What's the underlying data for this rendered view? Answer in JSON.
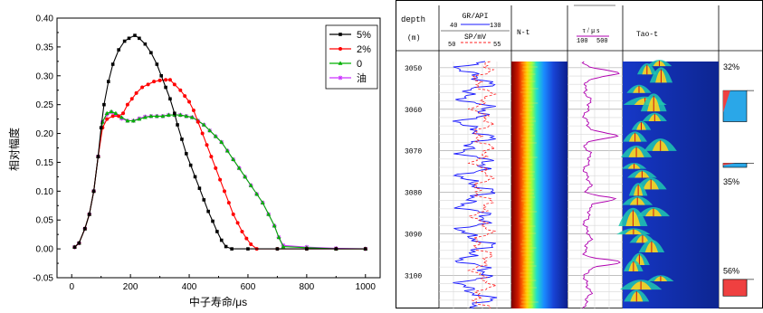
{
  "chart_data": [
    {
      "type": "line",
      "xlabel": "中子寿命/μs",
      "ylabel": "相对幅度",
      "xlim": [
        -50,
        1050
      ],
      "ylim": [
        -0.05,
        0.4
      ],
      "xticks": [
        "0",
        "200",
        "400",
        "600",
        "800",
        "1000"
      ],
      "yticks": [
        "-0.05",
        "0.00",
        "0.05",
        "0.10",
        "0.15",
        "0.20",
        "0.25",
        "0.30",
        "0.35",
        "0.40"
      ],
      "legend_position": "top-right",
      "series": [
        {
          "name": "5%",
          "color": "#000000",
          "marker": "square",
          "points": [
            [
              10,
              0.003
            ],
            [
              25,
              0.01
            ],
            [
              45,
              0.035
            ],
            [
              60,
              0.06
            ],
            [
              75,
              0.1
            ],
            [
              90,
              0.16
            ],
            [
              100,
              0.21
            ],
            [
              110,
              0.25
            ],
            [
              125,
              0.29
            ],
            [
              140,
              0.32
            ],
            [
              160,
              0.345
            ],
            [
              180,
              0.36
            ],
            [
              195,
              0.365
            ],
            [
              215,
              0.37
            ],
            [
              230,
              0.365
            ],
            [
              250,
              0.355
            ],
            [
              270,
              0.34
            ],
            [
              290,
              0.32
            ],
            [
              305,
              0.3
            ],
            [
              320,
              0.28
            ],
            [
              335,
              0.26
            ],
            [
              350,
              0.235
            ],
            [
              360,
              0.215
            ],
            [
              375,
              0.19
            ],
            [
              390,
              0.165
            ],
            [
              405,
              0.145
            ],
            [
              420,
              0.125
            ],
            [
              435,
              0.105
            ],
            [
              450,
              0.085
            ],
            [
              465,
              0.065
            ],
            [
              480,
              0.048
            ],
            [
              495,
              0.03
            ],
            [
              510,
              0.015
            ],
            [
              525,
              0.004
            ],
            [
              545,
              0.0
            ],
            [
              600,
              0.0
            ],
            [
              700,
              0.0
            ],
            [
              800,
              0.0
            ],
            [
              900,
              0.0
            ],
            [
              1000,
              0.0
            ]
          ]
        },
        {
          "name": "2%",
          "color": "#ff0000",
          "marker": "circle",
          "points": [
            [
              10,
              0.003
            ],
            [
              25,
              0.01
            ],
            [
              45,
              0.035
            ],
            [
              60,
              0.06
            ],
            [
              75,
              0.1
            ],
            [
              90,
              0.16
            ],
            [
              105,
              0.21
            ],
            [
              120,
              0.225
            ],
            [
              140,
              0.23
            ],
            [
              160,
              0.23
            ],
            [
              175,
              0.235
            ],
            [
              190,
              0.25
            ],
            [
              205,
              0.26
            ],
            [
              220,
              0.27
            ],
            [
              240,
              0.28
            ],
            [
              260,
              0.285
            ],
            [
              280,
              0.29
            ],
            [
              300,
              0.292
            ],
            [
              320,
              0.293
            ],
            [
              335,
              0.293
            ],
            [
              350,
              0.285
            ],
            [
              370,
              0.275
            ],
            [
              385,
              0.265
            ],
            [
              400,
              0.255
            ],
            [
              415,
              0.24
            ],
            [
              430,
              0.22
            ],
            [
              445,
              0.2
            ],
            [
              460,
              0.18
            ],
            [
              475,
              0.16
            ],
            [
              490,
              0.14
            ],
            [
              505,
              0.12
            ],
            [
              520,
              0.1
            ],
            [
              535,
              0.08
            ],
            [
              550,
              0.06
            ],
            [
              565,
              0.045
            ],
            [
              580,
              0.03
            ],
            [
              595,
              0.018
            ],
            [
              610,
              0.008
            ],
            [
              630,
              0.0
            ],
            [
              700,
              0.0
            ],
            [
              800,
              0.0
            ],
            [
              900,
              0.0
            ],
            [
              1000,
              0.0
            ]
          ]
        },
        {
          "name": "0",
          "color": "#00b000",
          "marker": "triangle",
          "points": [
            [
              10,
              0.003
            ],
            [
              25,
              0.01
            ],
            [
              45,
              0.035
            ],
            [
              60,
              0.06
            ],
            [
              75,
              0.1
            ],
            [
              90,
              0.16
            ],
            [
              105,
              0.22
            ],
            [
              120,
              0.235
            ],
            [
              135,
              0.238
            ],
            [
              150,
              0.235
            ],
            [
              170,
              0.228
            ],
            [
              190,
              0.222
            ],
            [
              210,
              0.222
            ],
            [
              230,
              0.225
            ],
            [
              250,
              0.228
            ],
            [
              270,
              0.23
            ],
            [
              290,
              0.23
            ],
            [
              310,
              0.23
            ],
            [
              330,
              0.232
            ],
            [
              350,
              0.232
            ],
            [
              370,
              0.232
            ],
            [
              390,
              0.23
            ],
            [
              410,
              0.228
            ],
            [
              430,
              0.222
            ],
            [
              450,
              0.215
            ],
            [
              470,
              0.205
            ],
            [
              490,
              0.195
            ],
            [
              510,
              0.185
            ],
            [
              530,
              0.17
            ],
            [
              550,
              0.155
            ],
            [
              570,
              0.14
            ],
            [
              590,
              0.125
            ],
            [
              610,
              0.11
            ],
            [
              630,
              0.095
            ],
            [
              650,
              0.08
            ],
            [
              670,
              0.06
            ],
            [
              690,
              0.04
            ],
            [
              705,
              0.02
            ],
            [
              720,
              0.004
            ],
            [
              800,
              0.002
            ],
            [
              900,
              0.0
            ],
            [
              1000,
              0.0
            ]
          ]
        },
        {
          "name": "油",
          "color": "#cc33ff",
          "marker": "star",
          "points": [
            [
              10,
              0.003
            ],
            [
              25,
              0.01
            ],
            [
              45,
              0.035
            ],
            [
              60,
              0.06
            ],
            [
              75,
              0.1
            ],
            [
              90,
              0.16
            ],
            [
              105,
              0.22
            ],
            [
              120,
              0.233
            ],
            [
              135,
              0.237
            ],
            [
              150,
              0.233
            ],
            [
              170,
              0.226
            ],
            [
              190,
              0.222
            ],
            [
              210,
              0.222
            ],
            [
              230,
              0.226
            ],
            [
              250,
              0.229
            ],
            [
              270,
              0.23
            ],
            [
              290,
              0.23
            ],
            [
              310,
              0.23
            ],
            [
              330,
              0.232
            ],
            [
              350,
              0.232
            ],
            [
              370,
              0.232
            ],
            [
              390,
              0.23
            ],
            [
              410,
              0.228
            ],
            [
              430,
              0.222
            ],
            [
              450,
              0.215
            ],
            [
              470,
              0.205
            ],
            [
              490,
              0.195
            ],
            [
              510,
              0.185
            ],
            [
              530,
              0.17
            ],
            [
              550,
              0.155
            ],
            [
              570,
              0.14
            ],
            [
              590,
              0.125
            ],
            [
              610,
              0.11
            ],
            [
              630,
              0.095
            ],
            [
              650,
              0.08
            ],
            [
              670,
              0.06
            ],
            [
              690,
              0.04
            ],
            [
              705,
              0.02
            ],
            [
              720,
              0.006
            ],
            [
              800,
              0.003
            ],
            [
              900,
              0.001
            ],
            [
              1000,
              0.0
            ]
          ]
        }
      ]
    },
    {
      "type": "other",
      "depth_header": "depth",
      "depth_unit": "(m)",
      "depth_ticks": [
        "3050",
        "3060",
        "3070",
        "3080",
        "3090",
        "3100"
      ],
      "depth_range": [
        3045,
        3108
      ],
      "gr_label": "GR/API",
      "gr_range": [
        "40",
        "130"
      ],
      "sp_label": "SP/mV",
      "sp_range": [
        "50",
        "55"
      ],
      "nt_label": "N-t",
      "tau_label": "τ / μ s",
      "tau_range": [
        "100",
        "500"
      ],
      "taot_label": "Tao-t",
      "percent_labels": [
        {
          "text": "32%",
          "depth": 3049.8
        },
        {
          "text": "35%",
          "depth": 3077.5
        },
        {
          "text": "56%",
          "depth": 3099.0
        }
      ],
      "result_boxes": [
        {
          "depth_top": 3055.5,
          "depth_bottom": 3063.0,
          "split": 0.3
        },
        {
          "depth_top": 3073.0,
          "depth_bottom": 3074.0,
          "split": 0.5
        },
        {
          "depth_top": 3101.0,
          "depth_bottom": 3105.0,
          "split": 1.0
        }
      ]
    }
  ]
}
